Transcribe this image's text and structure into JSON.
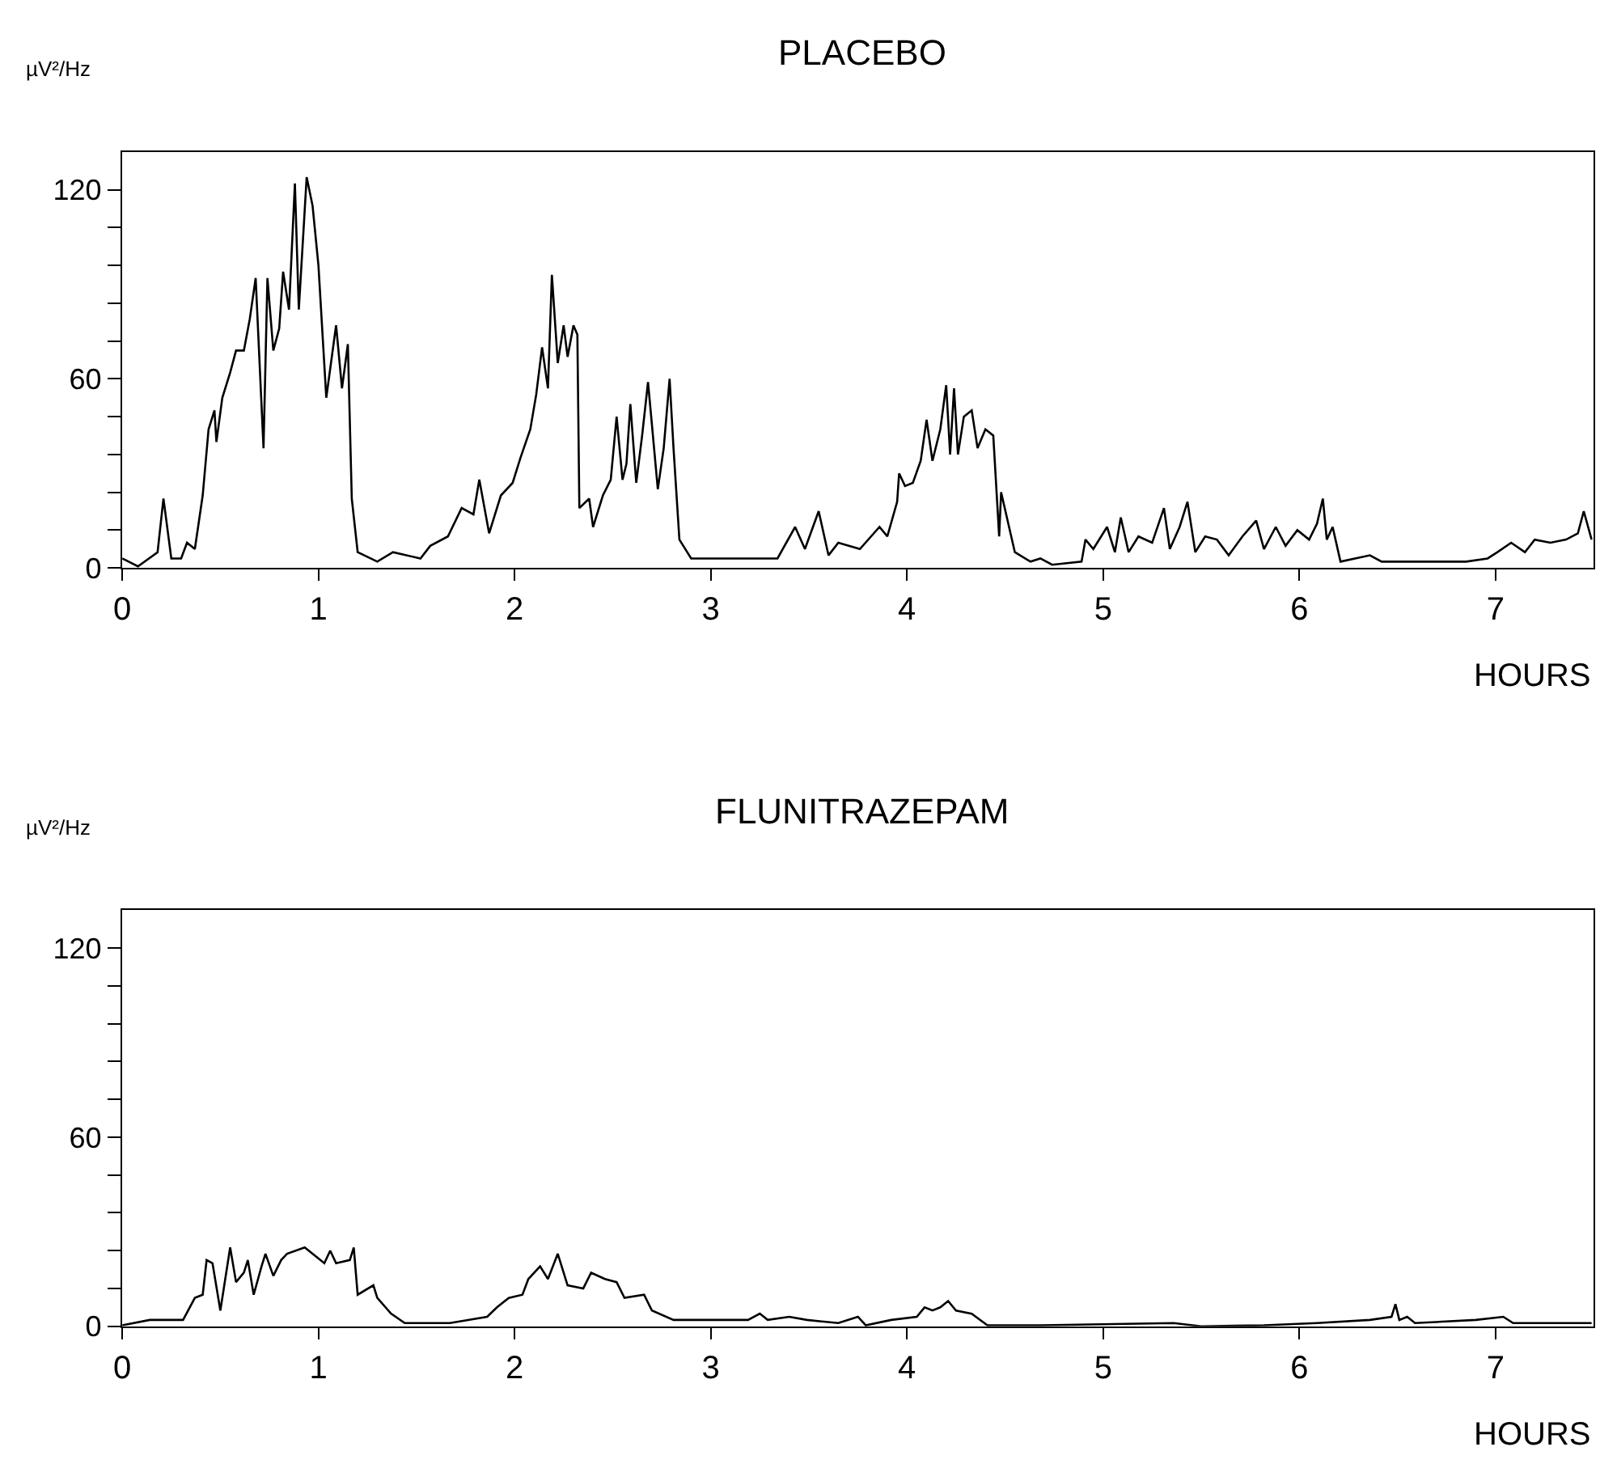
{
  "chart_data": [
    {
      "type": "line",
      "title": "PLACEBO",
      "xlabel": "HOURS",
      "ylabel": "µV²/Hz",
      "color": "#000000",
      "xlim": [
        0,
        7.5
      ],
      "xticks": [
        0,
        1,
        2,
        3,
        4,
        5,
        6,
        7
      ],
      "ylim": [
        0,
        132
      ],
      "yticks": [
        0,
        {
          "value": 12,
          "label": null
        },
        {
          "value": 24,
          "label": null
        },
        {
          "value": 36,
          "label": null
        },
        {
          "value": 48,
          "label": null
        },
        60,
        {
          "value": 72,
          "label": null
        },
        {
          "value": 84,
          "label": null
        },
        {
          "value": 96,
          "label": null
        },
        {
          "value": 108,
          "label": null
        },
        120
      ],
      "x": [
        0,
        0.08,
        0.18,
        0.21,
        0.25,
        0.3,
        0.33,
        0.37,
        0.41,
        0.44,
        0.47,
        0.48,
        0.51,
        0.55,
        0.58,
        0.62,
        0.65,
        0.68,
        0.72,
        0.74,
        0.77,
        0.8,
        0.82,
        0.85,
        0.88,
        0.9,
        0.94,
        0.97,
        1.0,
        1.04,
        1.09,
        1.12,
        1.15,
        1.17,
        1.2,
        1.3,
        1.38,
        1.52,
        1.57,
        1.66,
        1.73,
        1.79,
        1.82,
        1.87,
        1.93,
        1.99,
        2.03,
        2.08,
        2.11,
        2.14,
        2.17,
        2.19,
        2.22,
        2.25,
        2.27,
        2.3,
        2.32,
        2.33,
        2.38,
        2.4,
        2.45,
        2.49,
        2.52,
        2.55,
        2.57,
        2.59,
        2.62,
        2.65,
        2.68,
        2.73,
        2.76,
        2.79,
        2.81,
        2.84,
        2.9,
        3.01,
        3.34,
        3.43,
        3.48,
        3.55,
        3.6,
        3.65,
        3.76,
        3.86,
        3.9,
        3.95,
        3.96,
        3.99,
        4.03,
        4.07,
        4.1,
        4.13,
        4.17,
        4.2,
        4.22,
        4.24,
        4.26,
        4.29,
        4.33,
        4.36,
        4.4,
        4.44,
        4.47,
        4.48,
        4.55,
        4.63,
        4.68,
        4.74,
        4.89,
        4.91,
        4.95,
        5.02,
        5.06,
        5.09,
        5.13,
        5.18,
        5.25,
        5.31,
        5.34,
        5.39,
        5.43,
        5.47,
        5.52,
        5.58,
        5.64,
        5.71,
        5.78,
        5.82,
        5.88,
        5.93,
        5.99,
        6.05,
        6.09,
        6.12,
        6.14,
        6.17,
        6.21,
        6.36,
        6.42,
        6.63,
        6.85,
        6.96,
        7.01,
        7.08,
        7.15,
        7.2,
        7.28,
        7.36,
        7.42,
        7.45,
        7.49
      ],
      "values": [
        3,
        0.5,
        5,
        22,
        3,
        3,
        8,
        6,
        23,
        44,
        50,
        40,
        54,
        62,
        69,
        69,
        79,
        92,
        38,
        92,
        69,
        76,
        94,
        82,
        122,
        82,
        124,
        115,
        96,
        54,
        77,
        57,
        71,
        22,
        5,
        2,
        5,
        3,
        7,
        10,
        19,
        17,
        28,
        11,
        23,
        27,
        35,
        44,
        55,
        70,
        57,
        93,
        65,
        77,
        67,
        77,
        74,
        19,
        22,
        13,
        23,
        28,
        48,
        28,
        33,
        52,
        27,
        42,
        59,
        25,
        38,
        60,
        38,
        9,
        3,
        3,
        3,
        13,
        6,
        18,
        4,
        8,
        6,
        13,
        10,
        21,
        30,
        26,
        27,
        34,
        47,
        34,
        44,
        58,
        36,
        57,
        36,
        48,
        50,
        38,
        44,
        42,
        10,
        24,
        5,
        2,
        3,
        1,
        2,
        9,
        6,
        13,
        5,
        16,
        5,
        10,
        8,
        19,
        6,
        13,
        21,
        5,
        10,
        9,
        4,
        10,
        15,
        6,
        13,
        7,
        12,
        9,
        14,
        22,
        9,
        13,
        2,
        4,
        2,
        2,
        2,
        3,
        5,
        8,
        5,
        9,
        8,
        9,
        11,
        18,
        9
      ]
    },
    {
      "type": "line",
      "title": "FLUNITRAZEPAM",
      "xlabel": "HOURS",
      "ylabel": "µV²/Hz",
      "color": "#000000",
      "xlim": [
        0,
        7.5
      ],
      "xticks": [
        0,
        1,
        2,
        3,
        4,
        5,
        6,
        7
      ],
      "ylim": [
        0,
        132
      ],
      "yticks": [
        0,
        {
          "value": 12,
          "label": null
        },
        {
          "value": 24,
          "label": null
        },
        {
          "value": 36,
          "label": null
        },
        {
          "value": 48,
          "label": null
        },
        60,
        {
          "value": 72,
          "label": null
        },
        {
          "value": 84,
          "label": null
        },
        {
          "value": 96,
          "label": null
        },
        {
          "value": 108,
          "label": null
        },
        120
      ],
      "x": [
        0,
        0.14,
        0.31,
        0.37,
        0.41,
        0.43,
        0.46,
        0.5,
        0.55,
        0.58,
        0.62,
        0.64,
        0.67,
        0.71,
        0.73,
        0.77,
        0.81,
        0.84,
        0.93,
        1.03,
        1.06,
        1.09,
        1.16,
        1.18,
        1.2,
        1.28,
        1.3,
        1.37,
        1.44,
        1.67,
        1.86,
        1.91,
        1.97,
        2.04,
        2.07,
        2.13,
        2.17,
        2.22,
        2.27,
        2.35,
        2.39,
        2.46,
        2.52,
        2.56,
        2.66,
        2.7,
        2.81,
        2.97,
        3.19,
        3.25,
        3.29,
        3.4,
        3.49,
        3.65,
        3.75,
        3.79,
        3.92,
        4.05,
        4.09,
        4.13,
        4.17,
        4.21,
        4.25,
        4.33,
        4.41,
        4.68,
        5.36,
        5.5,
        5.82,
        6.09,
        6.36,
        6.47,
        6.49,
        6.51,
        6.55,
        6.59,
        6.9,
        7.04,
        7.09,
        7.49
      ],
      "values": [
        0.3,
        2,
        2,
        9,
        10,
        21,
        20,
        5,
        25,
        14,
        17,
        21,
        10,
        19,
        23,
        16,
        21,
        23,
        25,
        20,
        24,
        20,
        21,
        25,
        10,
        13,
        9,
        4,
        1,
        1,
        3,
        6,
        9,
        10,
        15,
        19,
        15,
        23,
        13,
        12,
        17,
        15,
        14,
        9,
        10,
        5,
        2,
        2,
        2,
        4,
        2,
        3,
        2,
        1,
        3,
        0.3,
        2,
        3,
        6,
        5,
        6,
        8,
        5,
        4,
        0.3,
        0.3,
        1,
        0,
        0.3,
        1,
        2,
        3,
        7,
        2,
        3,
        1,
        2,
        3,
        1,
        1
      ]
    }
  ]
}
